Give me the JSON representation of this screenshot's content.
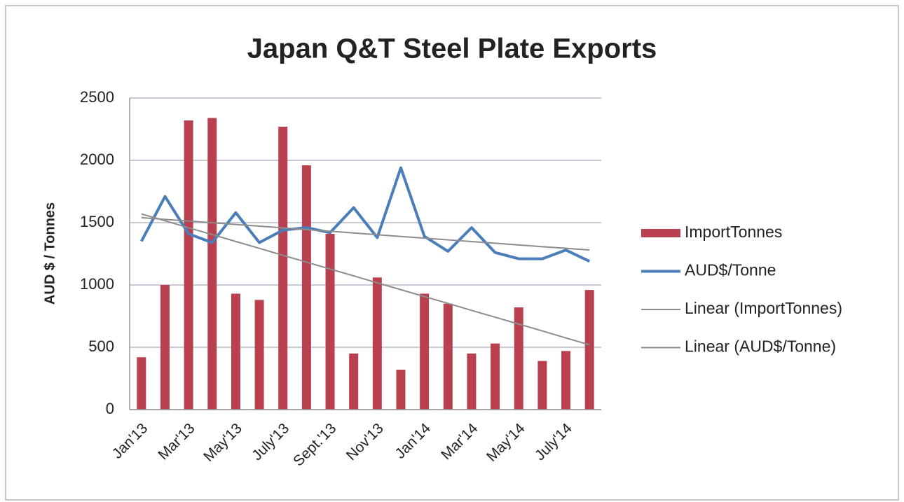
{
  "chart_data": {
    "type": "combo",
    "title": "Japan Q&T Steel Plate Exports",
    "y_label": "AUD $ / Tonnes",
    "categories": [
      "Jan'13",
      null,
      "Mar'13",
      null,
      "May'13",
      null,
      "July'13",
      null,
      "Sept.'13",
      null,
      "Nov'13",
      null,
      "Jan'14",
      null,
      "Mar'14",
      null,
      "May'14",
      null,
      "July'14",
      null
    ],
    "series": [
      {
        "name": "ImportTonnes",
        "type": "bar",
        "color": "#b9404f",
        "values": [
          420,
          1000,
          2320,
          2340,
          930,
          880,
          2270,
          1960,
          1410,
          450,
          1060,
          320,
          930,
          850,
          450,
          530,
          820,
          390,
          470,
          960
        ]
      },
      {
        "name": "AUD$/Tonne",
        "type": "line",
        "color": "#4a7ebb",
        "values": [
          1350,
          1710,
          1410,
          1340,
          1580,
          1340,
          1440,
          1460,
          1420,
          1620,
          1380,
          1940,
          1390,
          1270,
          1460,
          1260,
          1210,
          1210,
          1280,
          1190
        ]
      },
      {
        "name": "Linear (ImportTonnes)",
        "type": "trend",
        "color": "#8c8c8c",
        "values": [
          1570,
          1515,
          1459,
          1404,
          1349,
          1294,
          1238,
          1183,
          1128,
          1073,
          1017,
          962,
          907,
          852,
          796,
          741,
          686,
          631,
          575,
          520
        ]
      },
      {
        "name": "Linear (AUD$/Tonne)",
        "type": "trend",
        "color": "#8c8c8c",
        "values": [
          1540,
          1526,
          1513,
          1499,
          1485,
          1472,
          1458,
          1444,
          1431,
          1417,
          1403,
          1389,
          1376,
          1362,
          1348,
          1335,
          1321,
          1307,
          1294,
          1280
        ]
      }
    ],
    "ylim": [
      0,
      2500
    ],
    "yticks": [
      0,
      500,
      1000,
      1500,
      2000,
      2500
    ],
    "grid": true,
    "legend": "right"
  }
}
